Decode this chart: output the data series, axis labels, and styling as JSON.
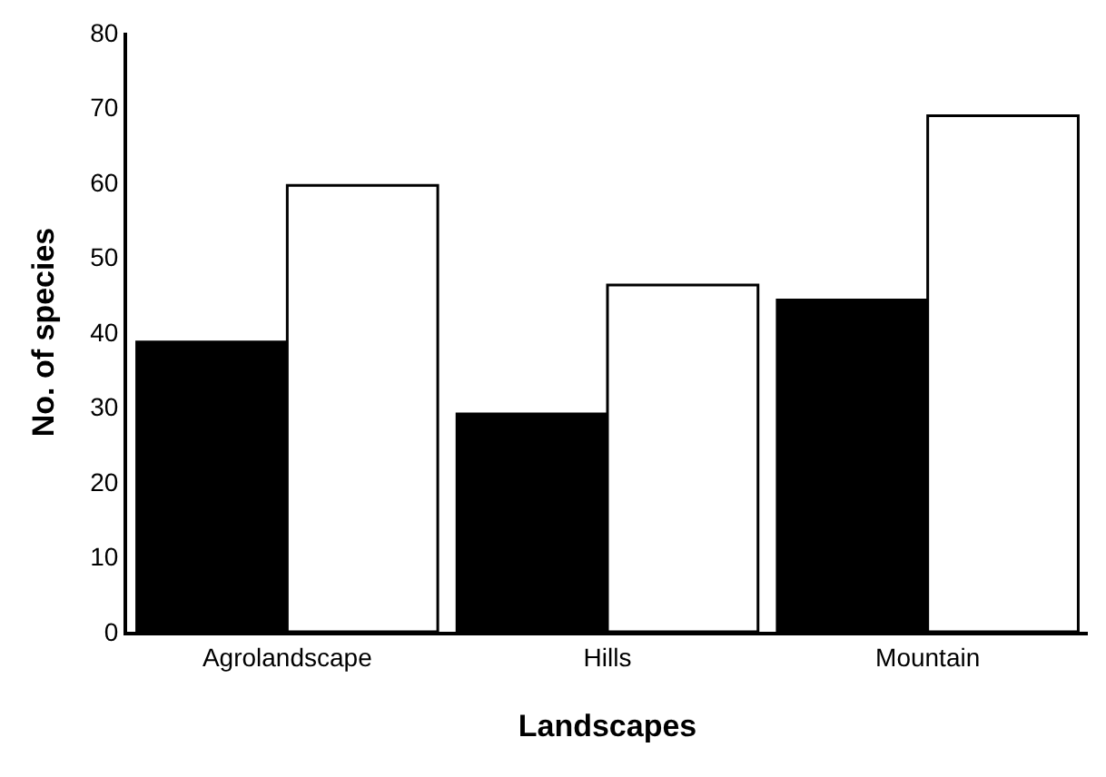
{
  "chart_data": {
    "type": "bar",
    "xlabel": "Landscapes",
    "ylabel": "No. of species",
    "categories": [
      "Agrolandscape",
      "Hills",
      "Mountain"
    ],
    "series": [
      {
        "color": "#000000",
        "values": [
          38.7,
          29.1,
          44.3
        ]
      },
      {
        "color": "#ffffff",
        "values": [
          59.6,
          46.3,
          68.9
        ]
      }
    ],
    "ylim": [
      0,
      80
    ],
    "yticks": [
      0,
      10,
      20,
      30,
      40,
      50,
      60,
      70,
      80
    ],
    "grid": false,
    "legend": false
  }
}
